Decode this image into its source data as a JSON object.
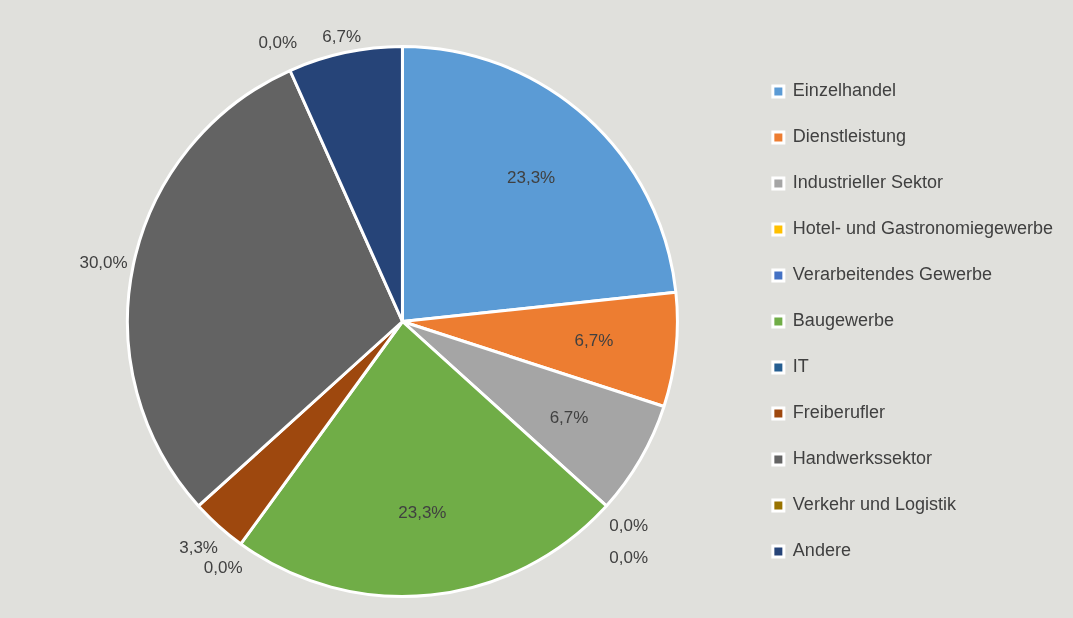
{
  "chart_data": {
    "type": "pie",
    "categories": [
      "Einzelhandel",
      "Dienstleistung",
      "Industrieller Sektor",
      "Hotel- und Gastronomiegewerbe",
      "Verarbeitendes Gewerbe",
      "Baugewerbe",
      "IT",
      "Freiberufler",
      "Handwerkssektor",
      "Verkehr und Logistik",
      "Andere"
    ],
    "values": [
      23.3,
      6.7,
      6.7,
      0.0,
      0.0,
      23.3,
      0.0,
      3.3,
      30.0,
      0.0,
      6.7
    ],
    "colors": [
      "#5b9bd5",
      "#ed7d31",
      "#a5a5a5",
      "#ffc000",
      "#4472c4",
      "#70ad47",
      "#255e91",
      "#9e480e",
      "#636363",
      "#997300",
      "#264478"
    ],
    "value_labels": [
      "23,3%",
      "6,7%",
      "6,7%",
      "0,0%",
      "0,0%",
      "23,3%",
      "0,0%",
      "3,3%",
      "30,0%",
      "0,0%",
      "6,7%"
    ],
    "legend": "right"
  }
}
